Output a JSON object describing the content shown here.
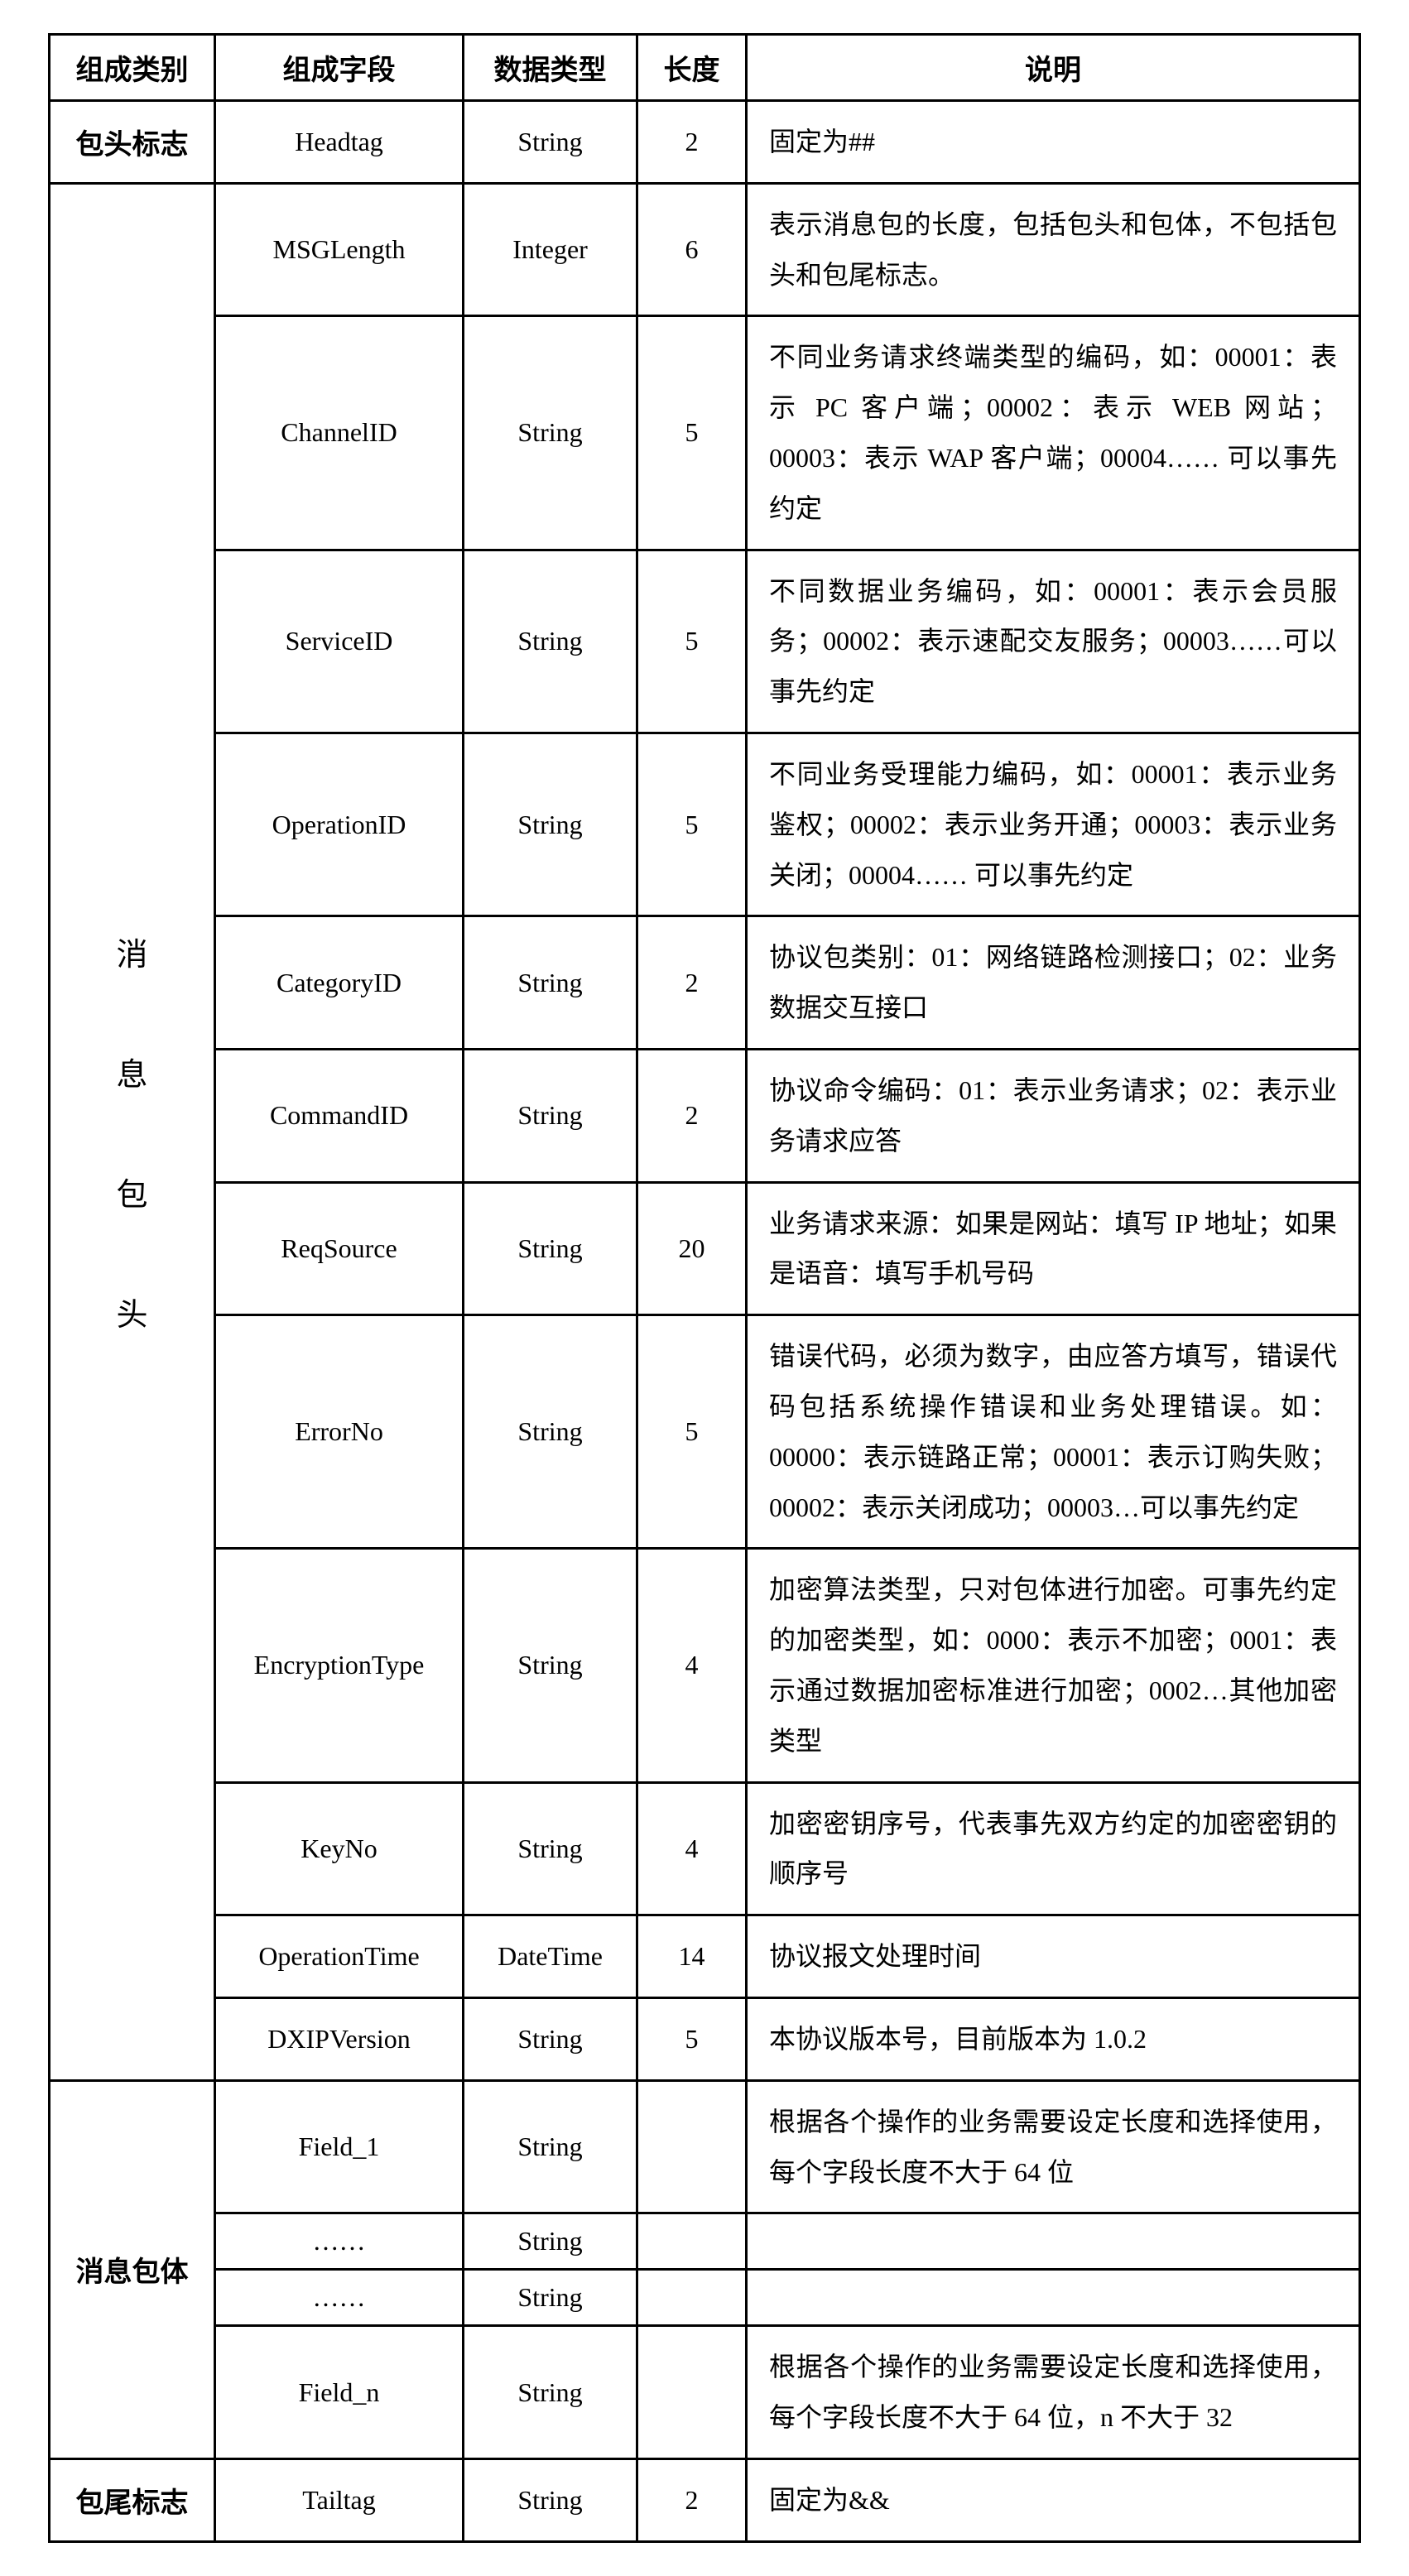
{
  "table": {
    "border_color": "#000000",
    "background_color": "#ffffff",
    "text_color": "#000000",
    "header_fontsize": 34,
    "body_fontsize": 32,
    "columns": {
      "category": "组成类别",
      "field": "组成字段",
      "type": "数据类型",
      "length": "长度",
      "desc": "说明"
    },
    "groups": [
      {
        "category": "包头标志",
        "category_bold": true,
        "rows": [
          {
            "field": "Headtag",
            "type": "String",
            "len": "2",
            "desc": "固定为##"
          }
        ]
      },
      {
        "category": "消息包头",
        "category_vertical_chars": [
          "消",
          "息",
          "包",
          "头"
        ],
        "rows": [
          {
            "field": "MSGLength",
            "type": "Integer",
            "len": "6",
            "desc": "表示消息包的长度，包括包头和包体，不包括包头和包尾标志。"
          },
          {
            "field": "ChannelID",
            "type": "String",
            "len": "5",
            "desc": "不同业务请求终端类型的编码，如：00001：表示 PC 客户端；00002：表示 WEB 网站；00003：表示 WAP 客户端；00004…… 可以事先约定"
          },
          {
            "field": "ServiceID",
            "type": "String",
            "len": "5",
            "desc": "不同数据业务编码，如：00001：表示会员服务；00002：表示速配交友服务；00003……可以事先约定"
          },
          {
            "field": "OperationID",
            "type": "String",
            "len": "5",
            "desc": "不同业务受理能力编码，如：00001：表示业务鉴权；00002：表示业务开通；00003：表示业务关闭；00004…… 可以事先约定"
          },
          {
            "field": "CategoryID",
            "type": "String",
            "len": "2",
            "desc": "协议包类别：01：网络链路检测接口；02：业务数据交互接口"
          },
          {
            "field": "CommandID",
            "type": "String",
            "len": "2",
            "desc": "协议命令编码：01：表示业务请求；02：表示业务请求应答"
          },
          {
            "field": "ReqSource",
            "type": "String",
            "len": "20",
            "desc": "业务请求来源：如果是网站：填写 IP 地址；如果是语音：填写手机号码"
          },
          {
            "field": "ErrorNo",
            "type": "String",
            "len": "5",
            "desc": "错误代码，必须为数字，由应答方填写，错误代码包括系统操作错误和业务处理错误。如：00000：表示链路正常；00001：表示订购失败；00002：表示关闭成功；00003…可以事先约定"
          },
          {
            "field": "EncryptionType",
            "type": "String",
            "len": "4",
            "desc": "加密算法类型，只对包体进行加密。可事先约定的加密类型，如：0000：表示不加密；0001：表示通过数据加密标准进行加密；0002…其他加密类型"
          },
          {
            "field": "KeyNo",
            "type": "String",
            "len": "4",
            "desc": "加密密钥序号，代表事先双方约定的加密密钥的顺序号"
          },
          {
            "field": "OperationTime",
            "type": "DateTime",
            "len": "14",
            "desc": "协议报文处理时间"
          },
          {
            "field": "DXIPVersion",
            "type": "String",
            "len": "5",
            "desc": "本协议版本号，目前版本为 1.0.2"
          }
        ]
      },
      {
        "category": "消息包体",
        "category_bold": true,
        "rows": [
          {
            "field": "Field_1",
            "type": "String",
            "len": "",
            "desc": "根据各个操作的业务需要设定长度和选择使用，每个字段长度不大于 64 位"
          },
          {
            "field": "……",
            "type": "String",
            "len": "",
            "desc": ""
          },
          {
            "field": "……",
            "type": "String",
            "len": "",
            "desc": ""
          },
          {
            "field": "Field_n",
            "type": "String",
            "len": "",
            "desc": "根据各个操作的业务需要设定长度和选择使用，每个字段长度不大于 64 位，n 不大于 32"
          }
        ]
      },
      {
        "category": "包尾标志",
        "category_bold": true,
        "rows": [
          {
            "field": "Tailtag",
            "type": "String",
            "len": "2",
            "desc": "固定为&&"
          }
        ]
      }
    ]
  }
}
